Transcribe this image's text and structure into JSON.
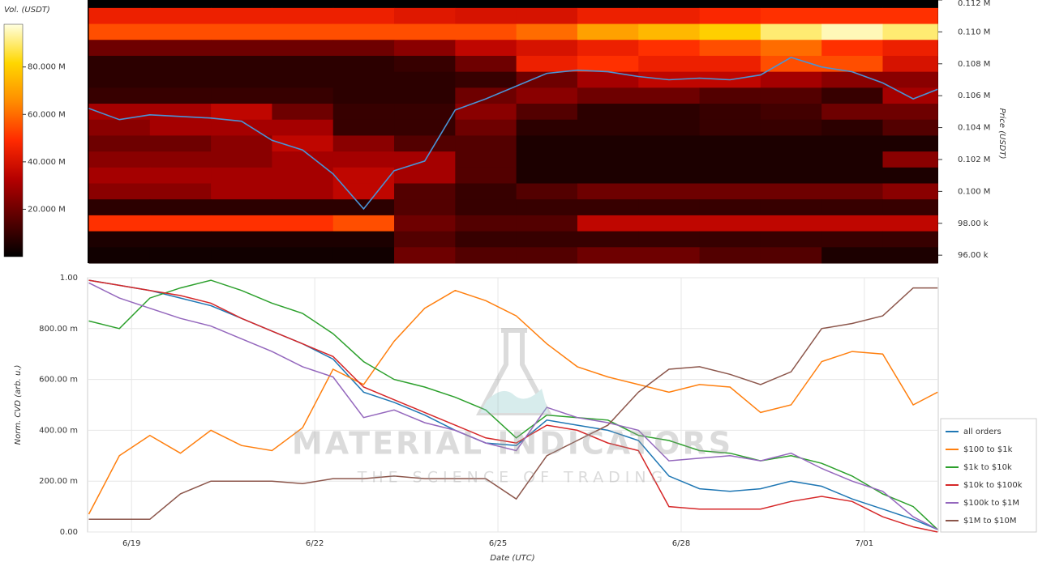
{
  "chart_data": [
    {
      "type": "heatmap",
      "colorbar_label": "Vol. (USDT)",
      "ylabel": "Price (USDT)",
      "xlim": [
        18.28,
        32.21
      ],
      "ylim": [
        95500,
        112000
      ],
      "yticks": [
        {
          "value": 96000,
          "label": "96.00 k"
        },
        {
          "value": 98000,
          "label": "98.00 k"
        },
        {
          "value": 100000,
          "label": "0.100 M"
        },
        {
          "value": 102000,
          "label": "0.102 M"
        },
        {
          "value": 104000,
          "label": "0.104 M"
        },
        {
          "value": 106000,
          "label": "0.106 M"
        },
        {
          "value": 108000,
          "label": "0.108 M"
        },
        {
          "value": 110000,
          "label": "0.110 M"
        },
        {
          "value": 112000,
          "label": "0.112 M"
        }
      ],
      "zlim": [
        0,
        98
      ],
      "zticks": [
        {
          "value": 20,
          "label": "20.000 M"
        },
        {
          "value": 40,
          "label": "40.000 M"
        },
        {
          "value": 60,
          "label": "60.000 M"
        },
        {
          "value": 80,
          "label": "80.000 M"
        }
      ],
      "colormap": [
        "#000000",
        "#5a0000",
        "#b40000",
        "#ff2a00",
        "#ff8c00",
        "#ffd700",
        "#ffffe0"
      ],
      "x_edges": [
        18.3,
        19.3,
        20.3,
        21.3,
        22.3,
        23.3,
        24.3,
        25.3,
        26.3,
        27.3,
        28.3,
        29.3,
        30.3,
        31.3,
        32.2
      ],
      "y": [
        111000,
        110000,
        109000,
        108000,
        107000,
        106000,
        105000,
        104000,
        103000,
        102000,
        101000,
        100000,
        99000,
        98000,
        97000,
        96000
      ],
      "z": [
        [
          45,
          45,
          45,
          45,
          45,
          42,
          40,
          40,
          45,
          45,
          48,
          50,
          50,
          50
        ],
        [
          55,
          55,
          55,
          55,
          55,
          55,
          55,
          60,
          70,
          75,
          80,
          90,
          95,
          90
        ],
        [
          20,
          20,
          20,
          20,
          20,
          25,
          35,
          40,
          45,
          50,
          55,
          60,
          50,
          45
        ],
        [
          8,
          8,
          8,
          8,
          8,
          10,
          20,
          45,
          50,
          45,
          45,
          55,
          55,
          40
        ],
        [
          8,
          8,
          8,
          8,
          8,
          8,
          10,
          20,
          30,
          35,
          35,
          30,
          25,
          25
        ],
        [
          10,
          10,
          10,
          10,
          8,
          8,
          20,
          25,
          20,
          20,
          15,
          15,
          10,
          30
        ],
        [
          30,
          30,
          35,
          20,
          10,
          10,
          25,
          15,
          8,
          8,
          10,
          12,
          20,
          20
        ],
        [
          25,
          30,
          30,
          30,
          10,
          10,
          20,
          8,
          8,
          8,
          10,
          10,
          8,
          15
        ],
        [
          20,
          20,
          25,
          35,
          25,
          15,
          15,
          5,
          5,
          5,
          5,
          5,
          5,
          5
        ],
        [
          25,
          25,
          25,
          30,
          30,
          30,
          15,
          5,
          5,
          5,
          5,
          5,
          5,
          25
        ],
        [
          30,
          30,
          30,
          30,
          35,
          30,
          15,
          5,
          5,
          5,
          5,
          5,
          5,
          5
        ],
        [
          25,
          25,
          30,
          30,
          35,
          15,
          10,
          15,
          20,
          20,
          20,
          20,
          20,
          25
        ],
        [
          8,
          8,
          8,
          8,
          8,
          15,
          10,
          10,
          10,
          10,
          10,
          10,
          10,
          10
        ],
        [
          50,
          50,
          50,
          50,
          55,
          20,
          15,
          15,
          35,
          35,
          35,
          35,
          35,
          35
        ],
        [
          5,
          5,
          5,
          5,
          5,
          15,
          10,
          10,
          10,
          10,
          10,
          10,
          10,
          10
        ],
        [
          3,
          3,
          3,
          3,
          3,
          20,
          15,
          15,
          20,
          20,
          15,
          15,
          5,
          5
        ]
      ],
      "line_color": "#4a93d6",
      "line_x": [
        18.3,
        18.8,
        19.3,
        19.8,
        20.3,
        20.8,
        21.3,
        21.8,
        22.3,
        22.8,
        23.3,
        23.8,
        24.3,
        24.8,
        25.3,
        25.8,
        26.3,
        26.8,
        27.3,
        27.8,
        28.3,
        28.8,
        29.3,
        29.8,
        30.3,
        30.8,
        31.3,
        31.8,
        32.2
      ],
      "line_values": [
        105200,
        104500,
        104800,
        104700,
        104600,
        104400,
        103200,
        102600,
        101100,
        98900,
        101300,
        101900,
        105100,
        105800,
        106600,
        107400,
        107600,
        107500,
        107200,
        107000,
        107100,
        107000,
        107300,
        108400,
        107800,
        107500,
        106800,
        105800,
        106400
      ]
    },
    {
      "type": "line",
      "xlabel": "Date (UTC)",
      "ylabel": "Norm. CVD (arb. u.)",
      "watermark": [
        "MATERIAL INDICATORS",
        "THE SCIENCE OF TRADING"
      ],
      "grid": true,
      "legend": "right",
      "xlim": [
        18.28,
        32.21
      ],
      "xticks": [
        {
          "value": 19,
          "label": "6/19"
        },
        {
          "value": 22,
          "label": "6/22"
        },
        {
          "value": 25,
          "label": "6/25"
        },
        {
          "value": 28,
          "label": "6/28"
        },
        {
          "value": 31,
          "label": "7/01"
        }
      ],
      "ylim": [
        0,
        1
      ],
      "yticks": [
        {
          "value": 0,
          "label": "0.00"
        },
        {
          "value": 0.2,
          "label": "200.00 m"
        },
        {
          "value": 0.4,
          "label": "400.00 m"
        },
        {
          "value": 0.6,
          "label": "600.00 m"
        },
        {
          "value": 0.8,
          "label": "800.00 m"
        },
        {
          "value": 1,
          "label": "1.00"
        }
      ],
      "x": [
        18.3,
        18.8,
        19.3,
        19.8,
        20.3,
        20.8,
        21.3,
        21.8,
        22.3,
        22.8,
        23.3,
        23.8,
        24.3,
        24.8,
        25.3,
        25.8,
        26.3,
        26.8,
        27.3,
        27.8,
        28.3,
        28.8,
        29.3,
        29.8,
        30.3,
        30.8,
        31.3,
        31.8,
        32.2
      ],
      "series": [
        {
          "name": "all orders",
          "color": "#1f77b4",
          "values": [
            0.99,
            0.97,
            0.95,
            0.92,
            0.89,
            0.84,
            0.79,
            0.74,
            0.68,
            0.55,
            0.51,
            0.46,
            0.4,
            0.35,
            0.34,
            0.44,
            0.42,
            0.4,
            0.36,
            0.22,
            0.17,
            0.16,
            0.17,
            0.2,
            0.18,
            0.13,
            0.09,
            0.05,
            0.01
          ]
        },
        {
          "name": "$100 to $1k",
          "color": "#ff7f0e",
          "values": [
            0.07,
            0.3,
            0.38,
            0.31,
            0.4,
            0.34,
            0.32,
            0.41,
            0.64,
            0.58,
            0.75,
            0.88,
            0.95,
            0.91,
            0.85,
            0.74,
            0.65,
            0.61,
            0.58,
            0.55,
            0.58,
            0.57,
            0.47,
            0.5,
            0.67,
            0.71,
            0.7,
            0.5,
            0.55
          ]
        },
        {
          "name": "$1k to $10k",
          "color": "#2ca02c",
          "values": [
            0.83,
            0.8,
            0.92,
            0.96,
            0.99,
            0.95,
            0.9,
            0.86,
            0.78,
            0.67,
            0.6,
            0.57,
            0.53,
            0.48,
            0.37,
            0.46,
            0.45,
            0.44,
            0.38,
            0.36,
            0.32,
            0.31,
            0.28,
            0.3,
            0.27,
            0.22,
            0.15,
            0.1,
            0.01
          ]
        },
        {
          "name": "$10k to $100k",
          "color": "#d62728",
          "values": [
            0.99,
            0.97,
            0.95,
            0.93,
            0.9,
            0.84,
            0.79,
            0.74,
            0.69,
            0.57,
            0.52,
            0.47,
            0.42,
            0.37,
            0.35,
            0.42,
            0.4,
            0.35,
            0.32,
            0.1,
            0.09,
            0.09,
            0.09,
            0.12,
            0.14,
            0.12,
            0.06,
            0.02,
            0.0
          ]
        },
        {
          "name": "$100k to $1M",
          "color": "#9467bd",
          "values": [
            0.98,
            0.92,
            0.88,
            0.84,
            0.81,
            0.76,
            0.71,
            0.65,
            0.61,
            0.45,
            0.48,
            0.43,
            0.4,
            0.35,
            0.32,
            0.49,
            0.45,
            0.43,
            0.4,
            0.28,
            0.29,
            0.3,
            0.28,
            0.31,
            0.25,
            0.2,
            0.16,
            0.06,
            0.01
          ]
        },
        {
          "name": "$1M to $10M",
          "color": "#8c564b",
          "values": [
            0.05,
            0.05,
            0.05,
            0.15,
            0.2,
            0.2,
            0.2,
            0.19,
            0.21,
            0.21,
            0.22,
            0.21,
            0.21,
            0.21,
            0.13,
            0.3,
            0.36,
            0.42,
            0.55,
            0.64,
            0.65,
            0.62,
            0.58,
            0.63,
            0.8,
            0.82,
            0.85,
            0.96,
            0.96
          ]
        }
      ]
    }
  ]
}
